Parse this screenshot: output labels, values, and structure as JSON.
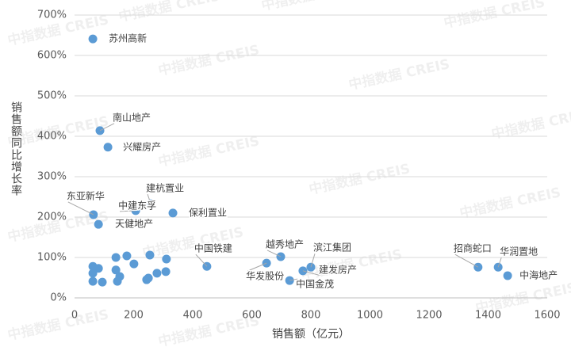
{
  "chart_data": {
    "type": "scatter",
    "x_label": "销售额（亿元）",
    "y_label": "销售额同比增长率",
    "watermark": "中指数据 CREIS",
    "xlim": [
      0,
      1600
    ],
    "xticks": [
      0,
      200,
      400,
      600,
      800,
      1000,
      1200,
      1400,
      1600
    ],
    "ylim": [
      0,
      700
    ],
    "yticks": [
      {
        "value": 0,
        "label": "0%"
      },
      {
        "value": 100,
        "label": "100%"
      },
      {
        "value": 200,
        "label": "200%"
      },
      {
        "value": 300,
        "label": "300%"
      },
      {
        "value": 400,
        "label": "400%"
      },
      {
        "value": 500,
        "label": "500%"
      },
      {
        "value": 600,
        "label": "600%"
      },
      {
        "value": 700,
        "label": "700%"
      }
    ],
    "grid": true,
    "series": [
      {
        "color": "#5b9bd5",
        "x": [
          62,
          86,
          113,
          258,
          207,
          64,
          333,
          81,
          448,
          698,
          650,
          800,
          773,
          728,
          1366,
          1434,
          1466,
          62,
          81,
          62,
          62,
          94,
          140,
          140,
          153,
          145,
          177,
          201,
          255,
          250,
          244,
          279,
          311,
          309
        ],
        "values": [
          641,
          414,
          373,
          233,
          216,
          206,
          210,
          182,
          78,
          102,
          86,
          76,
          67,
          43,
          76,
          76,
          55,
          78,
          73,
          61,
          41,
          39,
          100,
          69,
          53,
          41,
          104,
          84,
          106,
          49,
          45,
          61,
          96,
          65
        ],
        "labels": [
          "苏州高新",
          "南山地产",
          "兴耀房产",
          "建杭置业",
          "中建东孚",
          "东亚新华",
          "保利置业",
          "天健地产",
          "中国铁建",
          "越秀地产",
          "华发股份",
          "滨江集团",
          "建发房产",
          "中国金茂",
          "招商蛇口",
          "华润置地",
          "中海地产",
          null,
          null,
          null,
          null,
          null,
          null,
          null,
          null,
          null,
          null,
          null,
          null,
          null,
          null,
          null,
          null,
          null
        ]
      }
    ]
  }
}
